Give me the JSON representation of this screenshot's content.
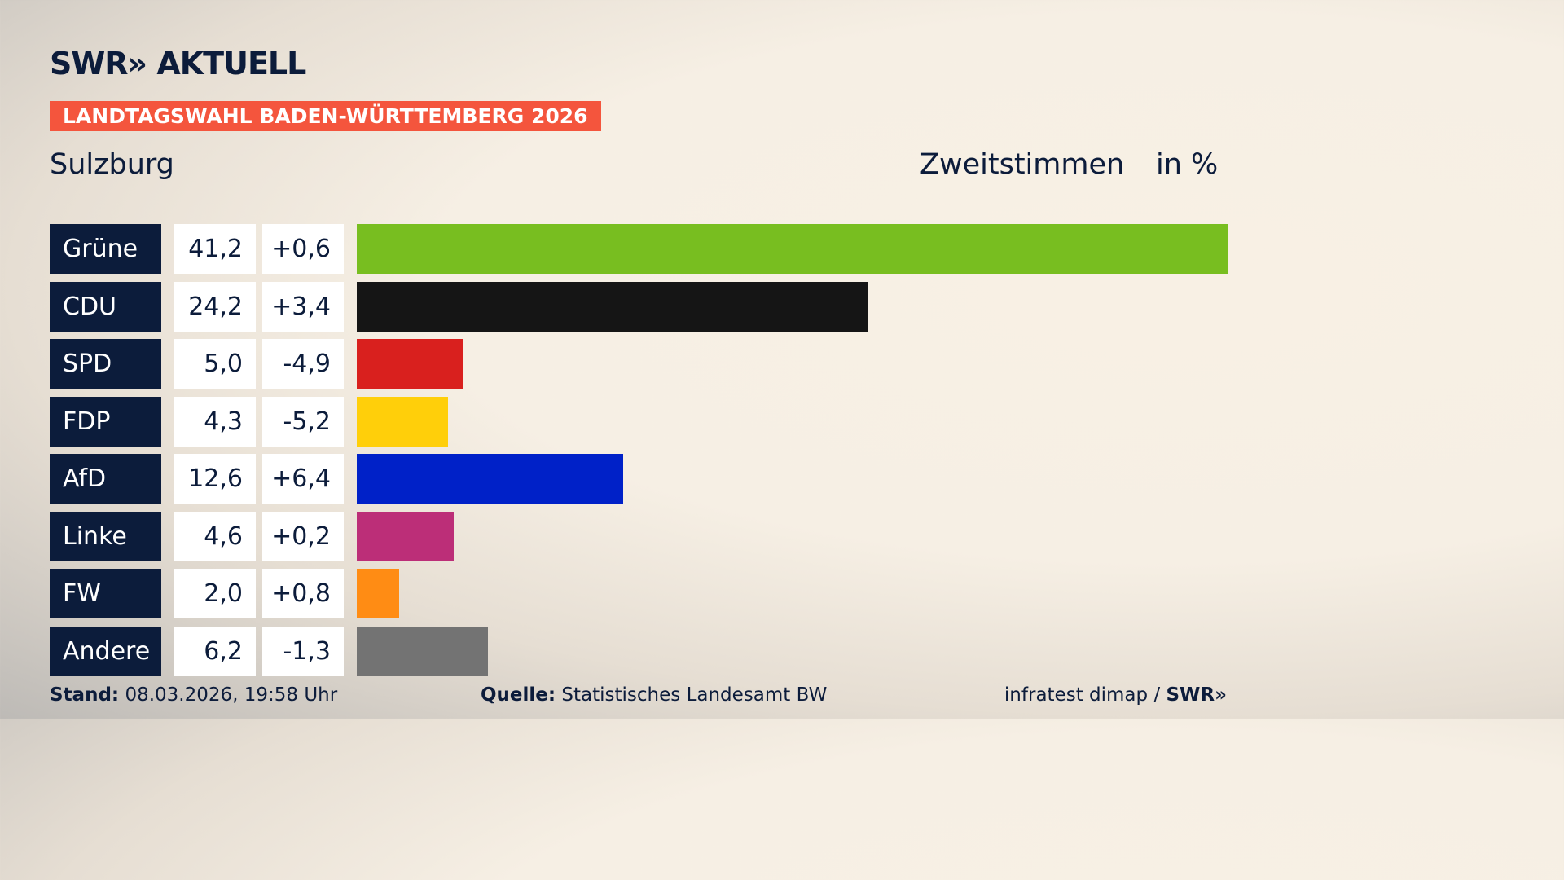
{
  "header": {
    "logo": "SWR» AKTUELL",
    "banner": "LANDTAGSWAHL BADEN-WÜRTTEMBERG 2026",
    "region": "Sulzburg",
    "metric": "Zweitstimmen",
    "unit": "in %"
  },
  "chart_data": {
    "type": "bar",
    "orientation": "horizontal",
    "categories": [
      "Grüne",
      "CDU",
      "SPD",
      "FDP",
      "AfD",
      "Linke",
      "FW",
      "Andere"
    ],
    "values": [
      41.2,
      24.2,
      5.0,
      4.3,
      12.6,
      4.6,
      2.0,
      6.2
    ],
    "values_label": [
      "41,2",
      "24,2",
      "5,0",
      "4,3",
      "12,6",
      "4,6",
      "2,0",
      "6,2"
    ],
    "change": [
      0.6,
      3.4,
      -4.9,
      -5.2,
      6.4,
      0.2,
      0.8,
      -1.3
    ],
    "change_label": [
      "+0,6",
      "+3,4",
      "-4,9",
      "-5,2",
      "+6,4",
      "+0,2",
      "+0,8",
      "-1,3"
    ],
    "colors": [
      "#78be20",
      "#151515",
      "#d9201e",
      "#ffcf0a",
      "#0021c8",
      "#bc2e78",
      "#ff8c14",
      "#737373"
    ]
  },
  "footer": {
    "stand_label": "Stand:",
    "stand": "08.03.2026, 19:58 Uhr",
    "source_label": "Quelle:",
    "source": "Statistisches Landesamt BW",
    "credit": "infratest dimap /",
    "credit_logo": "SWR»"
  }
}
